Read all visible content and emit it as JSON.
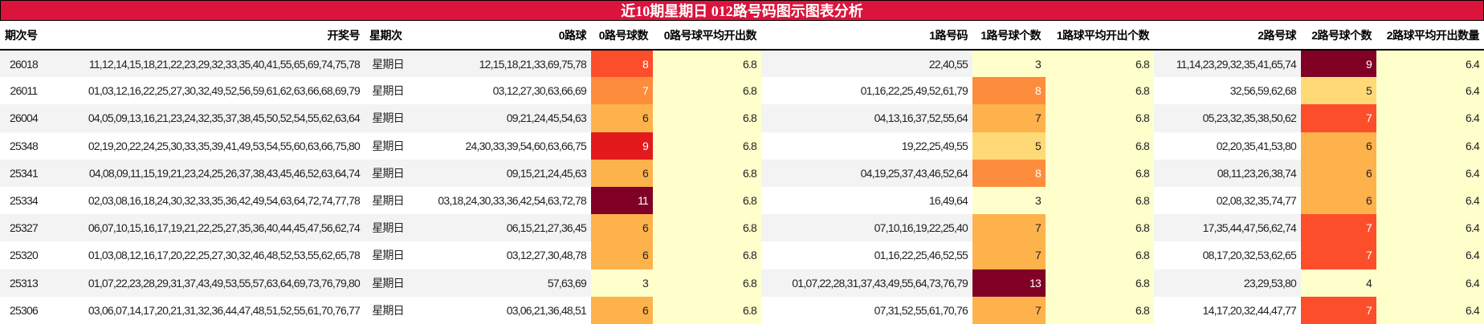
{
  "title": "近10期星期日 012路号码图示图表分析",
  "headers": [
    "期次号",
    "开奖号",
    "星期次",
    "0路球",
    "0路号球数",
    "0路号球平均开出数",
    "1路号码",
    "1路号球个数",
    "1路球平均开出个数",
    "2路号球",
    "2路号球个数",
    "2路球平均开出数量"
  ],
  "rows": [
    {
      "issue": "26018",
      "numbers": "11,12,14,15,18,21,22,23,29,32,33,35,40,41,55,65,69,74,75,78",
      "weekday": "星期日",
      "r0": "12,15,18,21,33,69,75,78",
      "c0": "8",
      "a0": "6.8",
      "r1": "22,40,55",
      "c1": "3",
      "a1": "6.8",
      "r2": "11,14,23,29,32,35,41,65,74",
      "c2": "9",
      "a2": "6.4",
      "bg0": "#fc4e2a",
      "fg0": "#fff",
      "bg1": "#ffffcc",
      "fg1": "#222",
      "bg2": "#800026",
      "fg2": "#fff"
    },
    {
      "issue": "26011",
      "numbers": "01,03,12,16,22,25,27,30,32,49,52,56,59,61,62,63,66,68,69,79",
      "weekday": "星期日",
      "r0": "03,12,27,30,63,66,69",
      "c0": "7",
      "a0": "6.8",
      "r1": "01,16,22,25,49,52,61,79",
      "c1": "8",
      "a1": "6.8",
      "r2": "32,56,59,62,68",
      "c2": "5",
      "a2": "6.4",
      "bg0": "#fd8d3c",
      "fg0": "#fff",
      "bg1": "#fd8d3c",
      "fg1": "#fff",
      "bg2": "#fed976",
      "fg2": "#222"
    },
    {
      "issue": "26004",
      "numbers": "04,05,09,13,16,21,23,24,32,35,37,38,45,50,52,54,55,62,63,64",
      "weekday": "星期日",
      "r0": "09,21,24,45,54,63",
      "c0": "6",
      "a0": "6.8",
      "r1": "04,13,16,37,52,55,64",
      "c1": "7",
      "a1": "6.8",
      "r2": "05,23,32,35,38,50,62",
      "c2": "7",
      "a2": "6.4",
      "bg0": "#feb24c",
      "fg0": "#222",
      "bg1": "#feb24c",
      "fg1": "#222",
      "bg2": "#fc4e2a",
      "fg2": "#fff"
    },
    {
      "issue": "25348",
      "numbers": "02,19,20,22,24,25,30,33,35,39,41,49,53,54,55,60,63,66,75,80",
      "weekday": "星期日",
      "r0": "24,30,33,39,54,60,63,66,75",
      "c0": "9",
      "a0": "6.8",
      "r1": "19,22,25,49,55",
      "c1": "5",
      "a1": "6.8",
      "r2": "02,20,35,41,53,80",
      "c2": "6",
      "a2": "6.4",
      "bg0": "#e31a1c",
      "fg0": "#fff",
      "bg1": "#fed976",
      "fg1": "#222",
      "bg2": "#feb24c",
      "fg2": "#222"
    },
    {
      "issue": "25341",
      "numbers": "04,08,09,11,15,19,21,23,24,25,26,37,38,43,45,46,52,63,64,74",
      "weekday": "星期日",
      "r0": "09,15,21,24,45,63",
      "c0": "6",
      "a0": "6.8",
      "r1": "04,19,25,37,43,46,52,64",
      "c1": "8",
      "a1": "6.8",
      "r2": "08,11,23,26,38,74",
      "c2": "6",
      "a2": "6.4",
      "bg0": "#feb24c",
      "fg0": "#222",
      "bg1": "#fd8d3c",
      "fg1": "#fff",
      "bg2": "#feb24c",
      "fg2": "#222"
    },
    {
      "issue": "25334",
      "numbers": "02,03,08,16,18,24,30,32,33,35,36,42,49,54,63,64,72,74,77,78",
      "weekday": "星期日",
      "r0": "03,18,24,30,33,36,42,54,63,72,78",
      "c0": "11",
      "a0": "6.8",
      "r1": "16,49,64",
      "c1": "3",
      "a1": "6.8",
      "r2": "02,08,32,35,74,77",
      "c2": "6",
      "a2": "6.4",
      "bg0": "#800026",
      "fg0": "#fff",
      "bg1": "#ffffcc",
      "fg1": "#222",
      "bg2": "#feb24c",
      "fg2": "#222"
    },
    {
      "issue": "25327",
      "numbers": "06,07,10,15,16,17,19,21,22,25,27,35,36,40,44,45,47,56,62,74",
      "weekday": "星期日",
      "r0": "06,15,21,27,36,45",
      "c0": "6",
      "a0": "6.8",
      "r1": "07,10,16,19,22,25,40",
      "c1": "7",
      "a1": "6.8",
      "r2": "17,35,44,47,56,62,74",
      "c2": "7",
      "a2": "6.4",
      "bg0": "#feb24c",
      "fg0": "#222",
      "bg1": "#feb24c",
      "fg1": "#222",
      "bg2": "#fc4e2a",
      "fg2": "#fff"
    },
    {
      "issue": "25320",
      "numbers": "01,03,08,12,16,17,20,22,25,27,30,32,46,48,52,53,55,62,65,78",
      "weekday": "星期日",
      "r0": "03,12,27,30,48,78",
      "c0": "6",
      "a0": "6.8",
      "r1": "01,16,22,25,46,52,55",
      "c1": "7",
      "a1": "6.8",
      "r2": "08,17,20,32,53,62,65",
      "c2": "7",
      "a2": "6.4",
      "bg0": "#feb24c",
      "fg0": "#222",
      "bg1": "#feb24c",
      "fg1": "#222",
      "bg2": "#fc4e2a",
      "fg2": "#fff"
    },
    {
      "issue": "25313",
      "numbers": "01,07,22,23,28,29,31,37,43,49,53,55,57,63,64,69,73,76,79,80",
      "weekday": "星期日",
      "r0": "57,63,69",
      "c0": "3",
      "a0": "6.8",
      "r1": "01,07,22,28,31,37,43,49,55,64,73,76,79",
      "c1": "13",
      "a1": "6.8",
      "r2": "23,29,53,80",
      "c2": "4",
      "a2": "6.4",
      "bg0": "#ffffcc",
      "fg0": "#222",
      "bg1": "#800026",
      "fg1": "#fff",
      "bg2": "#ffffcc",
      "fg2": "#222"
    },
    {
      "issue": "25306",
      "numbers": "03,06,07,14,17,20,21,31,32,36,44,47,48,51,52,55,61,70,76,77",
      "weekday": "星期日",
      "r0": "03,06,21,36,48,51",
      "c0": "6",
      "a0": "6.8",
      "r1": "07,31,52,55,61,70,76",
      "c1": "7",
      "a1": "6.8",
      "r2": "14,17,20,32,44,47,77",
      "c2": "7",
      "a2": "6.4",
      "bg0": "#feb24c",
      "fg0": "#222",
      "bg1": "#feb24c",
      "fg1": "#222",
      "bg2": "#fc4e2a",
      "fg2": "#fff"
    }
  ]
}
